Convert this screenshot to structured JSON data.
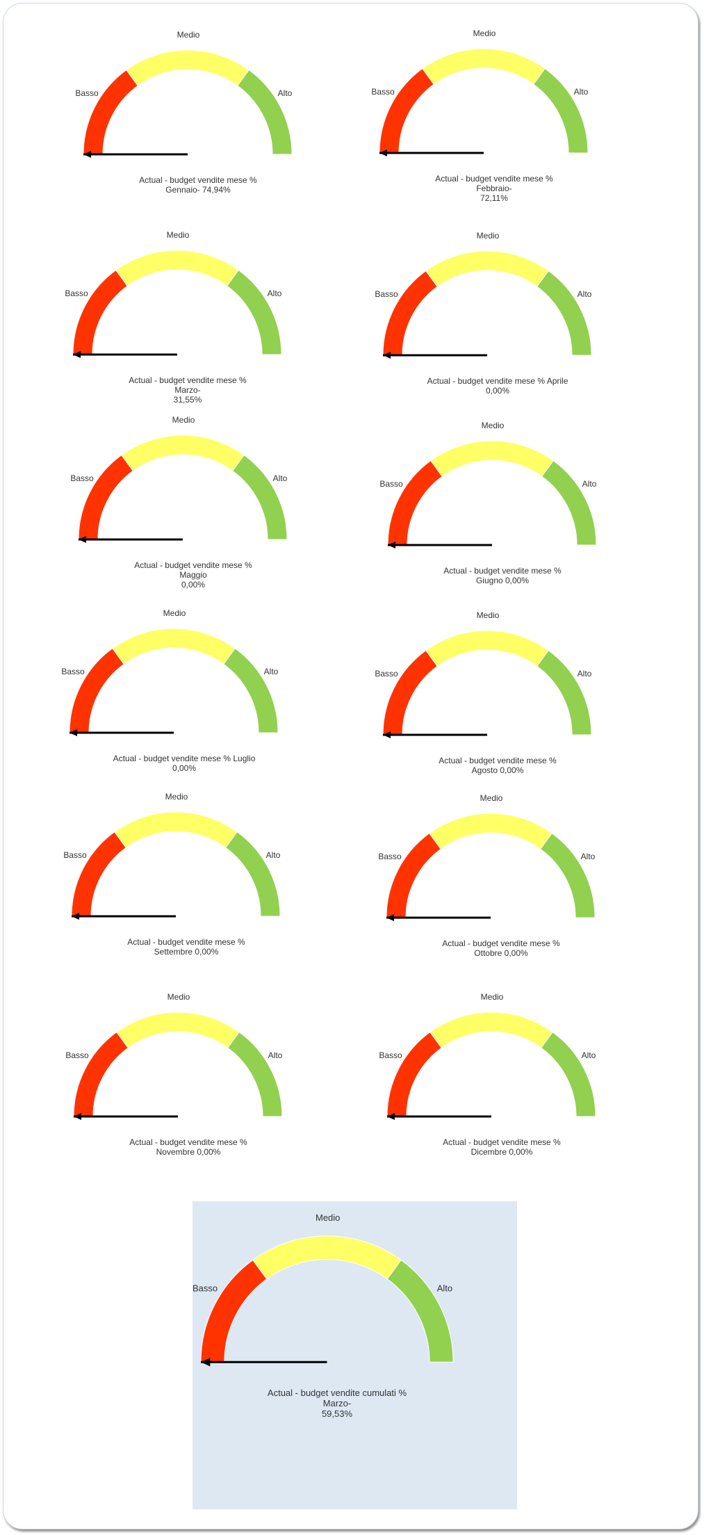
{
  "colors": {
    "low": "#ff3300",
    "mid": "#ffff66",
    "high": "#92d050",
    "needle": "#000000",
    "panel": "#dde8f3"
  },
  "band_labels": {
    "low": "Basso",
    "mid": "Medio",
    "high": "Alto"
  },
  "chart_data": [
    {
      "type": "gauge",
      "title": "Actual - budget vendite mese % Gennaio",
      "caption_lines": [
        "Actual - budget vendite mese %",
        "Gennaio- 74,94%"
      ],
      "value": -74.94,
      "range": [
        0,
        100
      ],
      "bands": [
        {
          "label": "Basso",
          "from": 0,
          "to": 30
        },
        {
          "label": "Medio",
          "from": 30,
          "to": 70
        },
        {
          "label": "Alto",
          "from": 70,
          "to": 100
        }
      ]
    },
    {
      "type": "gauge",
      "title": "Actual - budget vendite mese % Febbraio",
      "caption_lines": [
        "Actual - budget vendite mese % Febbraio-",
        "72,11%"
      ],
      "value": -72.11,
      "range": [
        0,
        100
      ],
      "bands": [
        {
          "label": "Basso",
          "from": 0,
          "to": 30
        },
        {
          "label": "Medio",
          "from": 30,
          "to": 70
        },
        {
          "label": "Alto",
          "from": 70,
          "to": 100
        }
      ]
    },
    {
      "type": "gauge",
      "title": "Actual - budget vendite mese % Marzo",
      "caption_lines": [
        "Actual - budget vendite mese % Marzo-",
        "31,55%"
      ],
      "value": -31.55,
      "range": [
        0,
        100
      ],
      "bands": [
        {
          "label": "Basso",
          "from": 0,
          "to": 30
        },
        {
          "label": "Medio",
          "from": 30,
          "to": 70
        },
        {
          "label": "Alto",
          "from": 70,
          "to": 100
        }
      ]
    },
    {
      "type": "gauge",
      "title": "Actual - budget vendite mese % Aprile",
      "caption_lines": [
        "Actual - budget vendite mese % Aprile",
        "0,00%"
      ],
      "value": 0,
      "range": [
        0,
        100
      ],
      "bands": [
        {
          "label": "Basso",
          "from": 0,
          "to": 30
        },
        {
          "label": "Medio",
          "from": 30,
          "to": 70
        },
        {
          "label": "Alto",
          "from": 70,
          "to": 100
        }
      ]
    },
    {
      "type": "gauge",
      "title": "Actual - budget vendite mese % Maggio",
      "caption_lines": [
        "Actual - budget vendite mese % Maggio",
        "0,00%"
      ],
      "value": 0,
      "range": [
        0,
        100
      ],
      "bands": [
        {
          "label": "Basso",
          "from": 0,
          "to": 30
        },
        {
          "label": "Medio",
          "from": 30,
          "to": 70
        },
        {
          "label": "Alto",
          "from": 70,
          "to": 100
        }
      ]
    },
    {
      "type": "gauge",
      "title": "Actual - budget vendite mese % Giugno",
      "caption_lines": [
        "Actual - budget vendite mese %",
        "Giugno 0,00%"
      ],
      "value": 0,
      "range": [
        0,
        100
      ],
      "bands": [
        {
          "label": "Basso",
          "from": 0,
          "to": 30
        },
        {
          "label": "Medio",
          "from": 30,
          "to": 70
        },
        {
          "label": "Alto",
          "from": 70,
          "to": 100
        }
      ]
    },
    {
      "type": "gauge",
      "title": "Actual - budget vendite mese % Luglio",
      "caption_lines": [
        "Actual - budget vendite mese % Luglio",
        "0,00%"
      ],
      "value": 0,
      "range": [
        0,
        100
      ],
      "bands": [
        {
          "label": "Basso",
          "from": 0,
          "to": 30
        },
        {
          "label": "Medio",
          "from": 30,
          "to": 70
        },
        {
          "label": "Alto",
          "from": 70,
          "to": 100
        }
      ]
    },
    {
      "type": "gauge",
      "title": "Actual - budget vendite mese % Agosto",
      "caption_lines": [
        "Actual - budget vendite mese %",
        "Agosto 0,00%"
      ],
      "value": 0,
      "range": [
        0,
        100
      ],
      "bands": [
        {
          "label": "Basso",
          "from": 0,
          "to": 30
        },
        {
          "label": "Medio",
          "from": 30,
          "to": 70
        },
        {
          "label": "Alto",
          "from": 70,
          "to": 100
        }
      ]
    },
    {
      "type": "gauge",
      "title": "Actual - budget vendite mese % Settembre",
      "caption_lines": [
        "Actual - budget vendite mese %",
        "Settembre 0,00%"
      ],
      "value": 0,
      "range": [
        0,
        100
      ],
      "bands": [
        {
          "label": "Basso",
          "from": 0,
          "to": 30
        },
        {
          "label": "Medio",
          "from": 30,
          "to": 70
        },
        {
          "label": "Alto",
          "from": 70,
          "to": 100
        }
      ]
    },
    {
      "type": "gauge",
      "title": "Actual - budget vendite mese % Ottobre",
      "caption_lines": [
        "Actual - budget vendite mese %",
        "Ottobre 0,00%"
      ],
      "value": 0,
      "range": [
        0,
        100
      ],
      "bands": [
        {
          "label": "Basso",
          "from": 0,
          "to": 30
        },
        {
          "label": "Medio",
          "from": 30,
          "to": 70
        },
        {
          "label": "Alto",
          "from": 70,
          "to": 100
        }
      ]
    },
    {
      "type": "gauge",
      "title": "Actual - budget vendite mese % Novembre",
      "caption_lines": [
        "Actual - budget vendite mese %",
        "Novembre 0,00%"
      ],
      "value": 0,
      "range": [
        0,
        100
      ],
      "bands": [
        {
          "label": "Basso",
          "from": 0,
          "to": 30
        },
        {
          "label": "Medio",
          "from": 30,
          "to": 70
        },
        {
          "label": "Alto",
          "from": 70,
          "to": 100
        }
      ]
    },
    {
      "type": "gauge",
      "title": "Actual - budget vendite mese % Dicembre",
      "caption_lines": [
        "Actual - budget vendite mese %",
        "Dicembre 0,00%"
      ],
      "value": 0,
      "range": [
        0,
        100
      ],
      "bands": [
        {
          "label": "Basso",
          "from": 0,
          "to": 30
        },
        {
          "label": "Medio",
          "from": 30,
          "to": 70
        },
        {
          "label": "Alto",
          "from": 70,
          "to": 100
        }
      ]
    },
    {
      "type": "gauge",
      "title": "Actual - budget vendite cumulati % Marzo",
      "caption_lines": [
        "Actual - budget vendite cumulati % Marzo-",
        "59,53%"
      ],
      "value": -59.53,
      "range": [
        0,
        100
      ],
      "highlighted": true,
      "bands": [
        {
          "label": "Basso",
          "from": 0,
          "to": 30
        },
        {
          "label": "Medio",
          "from": 30,
          "to": 70
        },
        {
          "label": "Alto",
          "from": 70,
          "to": 100
        }
      ]
    }
  ]
}
